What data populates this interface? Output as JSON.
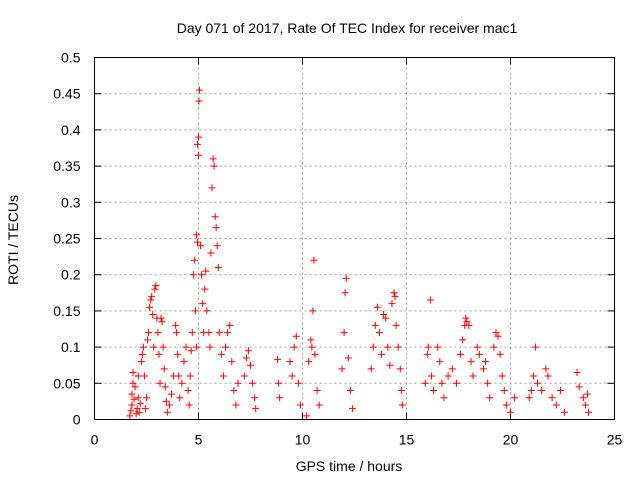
{
  "chart_data": {
    "type": "scatter",
    "title": "Day 071 of 2017, Rate Of TEC Index for receiver mac1",
    "xlabel": "GPS time / hours",
    "ylabel": "ROTI / TECUs",
    "xlim": [
      0,
      25
    ],
    "ylim": [
      0,
      0.5
    ],
    "x_ticks": [
      0,
      5,
      10,
      15,
      20,
      25
    ],
    "y_ticks": [
      0,
      0.05,
      0.1,
      0.15,
      0.2,
      0.25,
      0.3,
      0.35,
      0.4,
      0.45,
      0.5
    ],
    "grid": true,
    "marker": "+",
    "color": "#ff0000",
    "series": [
      {
        "name": "",
        "points": [
          [
            1.7,
            0.005
          ],
          [
            1.75,
            0.012
          ],
          [
            1.8,
            0.02
          ],
          [
            1.8,
            0.035
          ],
          [
            1.85,
            0.05
          ],
          [
            1.85,
            0.065
          ],
          [
            1.9,
            0.028
          ],
          [
            1.95,
            0.045
          ],
          [
            2.0,
            0.008
          ],
          [
            2.05,
            0.015
          ],
          [
            2.1,
            0.03
          ],
          [
            2.1,
            0.06
          ],
          [
            2.15,
            0.01
          ],
          [
            2.2,
            0.022
          ],
          [
            2.25,
            0.08
          ],
          [
            2.3,
            0.09
          ],
          [
            2.35,
            0.1
          ],
          [
            2.4,
            0.06
          ],
          [
            2.45,
            0.015
          ],
          [
            2.5,
            0.03
          ],
          [
            2.55,
            0.11
          ],
          [
            2.6,
            0.12
          ],
          [
            2.65,
            0.155
          ],
          [
            2.7,
            0.165
          ],
          [
            2.75,
            0.17
          ],
          [
            2.8,
            0.145
          ],
          [
            2.85,
            0.1
          ],
          [
            2.9,
            0.18
          ],
          [
            2.95,
            0.185
          ],
          [
            3.0,
            0.14
          ],
          [
            3.05,
            0.12
          ],
          [
            3.1,
            0.09
          ],
          [
            3.15,
            0.05
          ],
          [
            3.2,
            0.14
          ],
          [
            3.25,
            0.135
          ],
          [
            3.3,
            0.1
          ],
          [
            3.35,
            0.07
          ],
          [
            3.4,
            0.045
          ],
          [
            3.45,
            0.025
          ],
          [
            3.5,
            0.01
          ],
          [
            3.6,
            0.02
          ],
          [
            3.7,
            0.035
          ],
          [
            3.8,
            0.06
          ],
          [
            3.9,
            0.13
          ],
          [
            3.95,
            0.12
          ],
          [
            4.0,
            0.09
          ],
          [
            4.05,
            0.06
          ],
          [
            4.1,
            0.03
          ],
          [
            4.2,
            0.05
          ],
          [
            4.3,
            0.08
          ],
          [
            4.4,
            0.1
          ],
          [
            4.5,
            0.04
          ],
          [
            4.55,
            0.02
          ],
          [
            4.6,
            0.06
          ],
          [
            4.65,
            0.095
          ],
          [
            4.7,
            0.12
          ],
          [
            4.75,
            0.2
          ],
          [
            4.8,
            0.22
          ],
          [
            4.85,
            0.15
          ],
          [
            4.9,
            0.1
          ],
          [
            4.9,
            0.255
          ],
          [
            4.95,
            0.245
          ],
          [
            4.95,
            0.38
          ],
          [
            5.0,
            0.365
          ],
          [
            5.0,
            0.39
          ],
          [
            5.02,
            0.44
          ],
          [
            5.05,
            0.455
          ],
          [
            5.1,
            0.24
          ],
          [
            5.15,
            0.2
          ],
          [
            5.2,
            0.16
          ],
          [
            5.25,
            0.12
          ],
          [
            5.3,
            0.18
          ],
          [
            5.35,
            0.205
          ],
          [
            5.4,
            0.15
          ],
          [
            5.5,
            0.12
          ],
          [
            5.55,
            0.1
          ],
          [
            5.6,
            0.23
          ],
          [
            5.65,
            0.32
          ],
          [
            5.7,
            0.36
          ],
          [
            5.75,
            0.35
          ],
          [
            5.8,
            0.28
          ],
          [
            5.85,
            0.265
          ],
          [
            5.9,
            0.24
          ],
          [
            5.95,
            0.21
          ],
          [
            6.0,
            0.12
          ],
          [
            6.1,
            0.09
          ],
          [
            6.2,
            0.06
          ],
          [
            6.3,
            0.1
          ],
          [
            6.4,
            0.12
          ],
          [
            6.5,
            0.13
          ],
          [
            6.6,
            0.08
          ],
          [
            6.7,
            0.04
          ],
          [
            6.8,
            0.02
          ],
          [
            6.9,
            0.05
          ],
          [
            7.2,
            0.06
          ],
          [
            7.3,
            0.085
          ],
          [
            7.4,
            0.095
          ],
          [
            7.5,
            0.075
          ],
          [
            7.6,
            0.05
          ],
          [
            7.7,
            0.03
          ],
          [
            7.75,
            0.015
          ],
          [
            8.8,
            0.083
          ],
          [
            8.85,
            0.05
          ],
          [
            8.9,
            0.03
          ],
          [
            9.4,
            0.08
          ],
          [
            9.5,
            0.06
          ],
          [
            9.6,
            0.1
          ],
          [
            9.7,
            0.115
          ],
          [
            9.8,
            0.05
          ],
          [
            9.9,
            0.02
          ],
          [
            10.2,
            0.005
          ],
          [
            10.3,
            0.08
          ],
          [
            10.4,
            0.11
          ],
          [
            10.45,
            0.1
          ],
          [
            10.5,
            0.15
          ],
          [
            10.55,
            0.22
          ],
          [
            10.6,
            0.09
          ],
          [
            10.7,
            0.04
          ],
          [
            10.8,
            0.02
          ],
          [
            11.9,
            0.07
          ],
          [
            12.0,
            0.12
          ],
          [
            12.05,
            0.175
          ],
          [
            12.1,
            0.195
          ],
          [
            12.2,
            0.085
          ],
          [
            12.3,
            0.04
          ],
          [
            12.4,
            0.015
          ],
          [
            13.3,
            0.07
          ],
          [
            13.4,
            0.1
          ],
          [
            13.5,
            0.13
          ],
          [
            13.6,
            0.155
          ],
          [
            13.7,
            0.12
          ],
          [
            13.8,
            0.09
          ],
          [
            13.9,
            0.145
          ],
          [
            14.0,
            0.14
          ],
          [
            14.1,
            0.1
          ],
          [
            14.2,
            0.075
          ],
          [
            14.3,
            0.16
          ],
          [
            14.4,
            0.175
          ],
          [
            14.45,
            0.17
          ],
          [
            14.5,
            0.13
          ],
          [
            14.6,
            0.1
          ],
          [
            14.7,
            0.07
          ],
          [
            14.75,
            0.04
          ],
          [
            14.8,
            0.02
          ],
          [
            15.9,
            0.05
          ],
          [
            16.0,
            0.09
          ],
          [
            16.05,
            0.1
          ],
          [
            16.15,
            0.165
          ],
          [
            16.2,
            0.06
          ],
          [
            16.3,
            0.04
          ],
          [
            16.5,
            0.1
          ],
          [
            16.6,
            0.08
          ],
          [
            16.7,
            0.05
          ],
          [
            16.8,
            0.03
          ],
          [
            17.0,
            0.06
          ],
          [
            17.2,
            0.07
          ],
          [
            17.4,
            0.05
          ],
          [
            17.6,
            0.09
          ],
          [
            17.7,
            0.11
          ],
          [
            17.8,
            0.13
          ],
          [
            17.85,
            0.14
          ],
          [
            17.9,
            0.135
          ],
          [
            18.0,
            0.13
          ],
          [
            18.1,
            0.08
          ],
          [
            18.2,
            0.06
          ],
          [
            18.4,
            0.1
          ],
          [
            18.5,
            0.09
          ],
          [
            18.7,
            0.07
          ],
          [
            18.8,
            0.08
          ],
          [
            18.9,
            0.05
          ],
          [
            19.0,
            0.03
          ],
          [
            19.2,
            0.1
          ],
          [
            19.3,
            0.12
          ],
          [
            19.4,
            0.115
          ],
          [
            19.5,
            0.09
          ],
          [
            19.6,
            0.06
          ],
          [
            19.7,
            0.04
          ],
          [
            19.8,
            0.02
          ],
          [
            20.0,
            0.01
          ],
          [
            20.2,
            0.03
          ],
          [
            20.9,
            0.03
          ],
          [
            21.0,
            0.04
          ],
          [
            21.1,
            0.06
          ],
          [
            21.2,
            0.1
          ],
          [
            21.3,
            0.05
          ],
          [
            21.5,
            0.04
          ],
          [
            21.7,
            0.07
          ],
          [
            21.8,
            0.06
          ],
          [
            22.0,
            0.03
          ],
          [
            22.2,
            0.02
          ],
          [
            22.4,
            0.04
          ],
          [
            22.6,
            0.01
          ],
          [
            23.2,
            0.065
          ],
          [
            23.3,
            0.045
          ],
          [
            23.5,
            0.03
          ],
          [
            23.6,
            0.02
          ],
          [
            23.7,
            0.035
          ],
          [
            23.75,
            0.01
          ]
        ]
      }
    ]
  }
}
